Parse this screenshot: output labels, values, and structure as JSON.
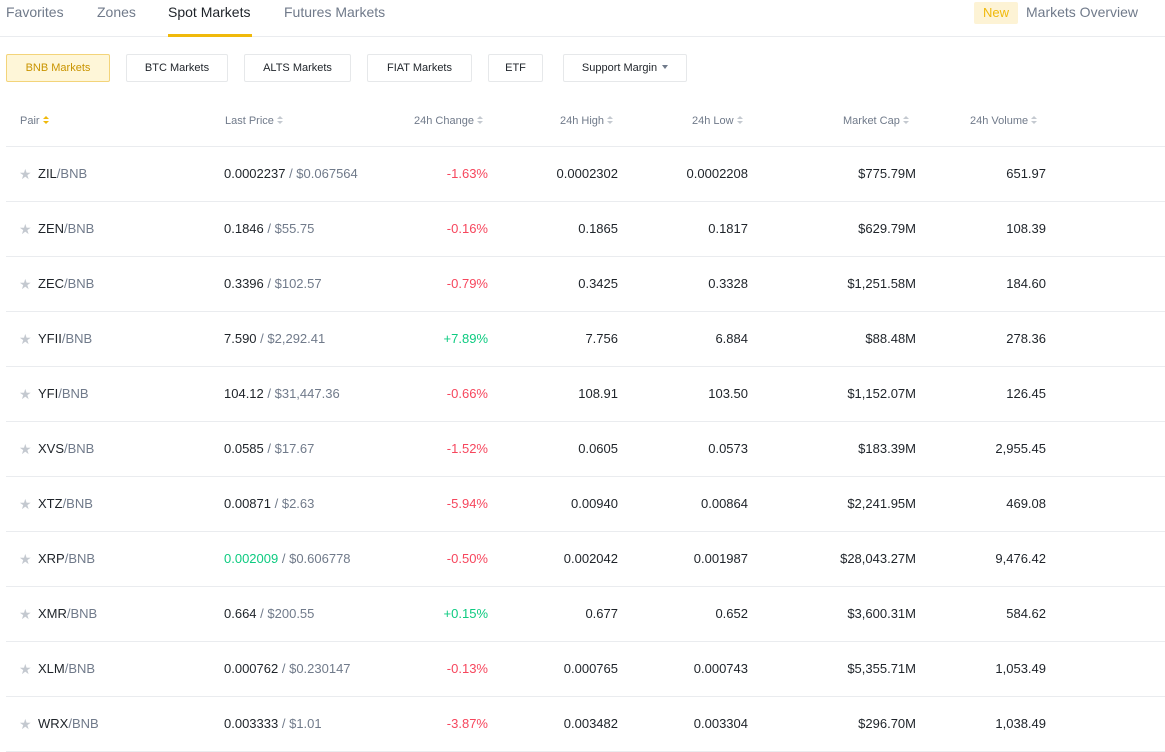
{
  "nav": {
    "tabs": [
      "Favorites",
      "Zones",
      "Spot Markets",
      "Futures Markets"
    ],
    "active_tab": "Spot Markets",
    "new_badge": "New",
    "markets_overview": "Markets Overview"
  },
  "filters": {
    "buttons": [
      "BNB Markets",
      "BTC Markets",
      "ALTS Markets",
      "FIAT Markets",
      "ETF",
      "Support Margin"
    ],
    "active": "BNB Markets"
  },
  "table": {
    "headers": {
      "pair": "Pair",
      "last_price": "Last Price",
      "change": "24h Change",
      "high": "24h High",
      "low": "24h Low",
      "market_cap": "Market Cap",
      "volume": "24h Volume"
    },
    "rows": [
      {
        "base": "ZIL",
        "quote": "/BNB",
        "last": "0.0002237",
        "usd": "/ $0.067564",
        "change": "-1.63%",
        "high": "0.0002302",
        "low": "0.0002208",
        "mcap": "$775.79M",
        "vol": "651.97"
      },
      {
        "base": "ZEN",
        "quote": "/BNB",
        "last": "0.1846",
        "usd": "/ $55.75",
        "change": "-0.16%",
        "high": "0.1865",
        "low": "0.1817",
        "mcap": "$629.79M",
        "vol": "108.39"
      },
      {
        "base": "ZEC",
        "quote": "/BNB",
        "last": "0.3396",
        "usd": "/ $102.57",
        "change": "-0.79%",
        "high": "0.3425",
        "low": "0.3328",
        "mcap": "$1,251.58M",
        "vol": "184.60"
      },
      {
        "base": "YFII",
        "quote": "/BNB",
        "last": "7.590",
        "usd": "/ $2,292.41",
        "change": "+7.89%",
        "high": "7.756",
        "low": "6.884",
        "mcap": "$88.48M",
        "vol": "278.36"
      },
      {
        "base": "YFI",
        "quote": "/BNB",
        "last": "104.12",
        "usd": "/ $31,447.36",
        "change": "-0.66%",
        "high": "108.91",
        "low": "103.50",
        "mcap": "$1,152.07M",
        "vol": "126.45"
      },
      {
        "base": "XVS",
        "quote": "/BNB",
        "last": "0.0585",
        "usd": "/ $17.67",
        "change": "-1.52%",
        "high": "0.0605",
        "low": "0.0573",
        "mcap": "$183.39M",
        "vol": "2,955.45"
      },
      {
        "base": "XTZ",
        "quote": "/BNB",
        "last": "0.00871",
        "usd": "/ $2.63",
        "change": "-5.94%",
        "high": "0.00940",
        "low": "0.00864",
        "mcap": "$2,241.95M",
        "vol": "469.08"
      },
      {
        "base": "XRP",
        "quote": "/BNB",
        "last": "0.002009",
        "usd": "/ $0.606778",
        "change": "-0.50%",
        "high": "0.002042",
        "low": "0.001987",
        "mcap": "$28,043.27M",
        "vol": "9,476.42"
      },
      {
        "base": "XMR",
        "quote": "/BNB",
        "last": "0.664",
        "usd": "/ $200.55",
        "change": "+0.15%",
        "high": "0.677",
        "low": "0.652",
        "mcap": "$3,600.31M",
        "vol": "584.62"
      },
      {
        "base": "XLM",
        "quote": "/BNB",
        "last": "0.000762",
        "usd": "/ $0.230147",
        "change": "-0.13%",
        "high": "0.000765",
        "low": "0.000743",
        "mcap": "$5,355.71M",
        "vol": "1,053.49"
      },
      {
        "base": "WRX",
        "quote": "/BNB",
        "last": "0.003333",
        "usd": "/ $1.01",
        "change": "-3.87%",
        "high": "0.003482",
        "low": "0.003304",
        "mcap": "$296.70M",
        "vol": "1,038.49"
      }
    ]
  },
  "colors": {
    "accent": "#f0b90b",
    "positive": "#0ecb81",
    "negative": "#f6465d"
  }
}
